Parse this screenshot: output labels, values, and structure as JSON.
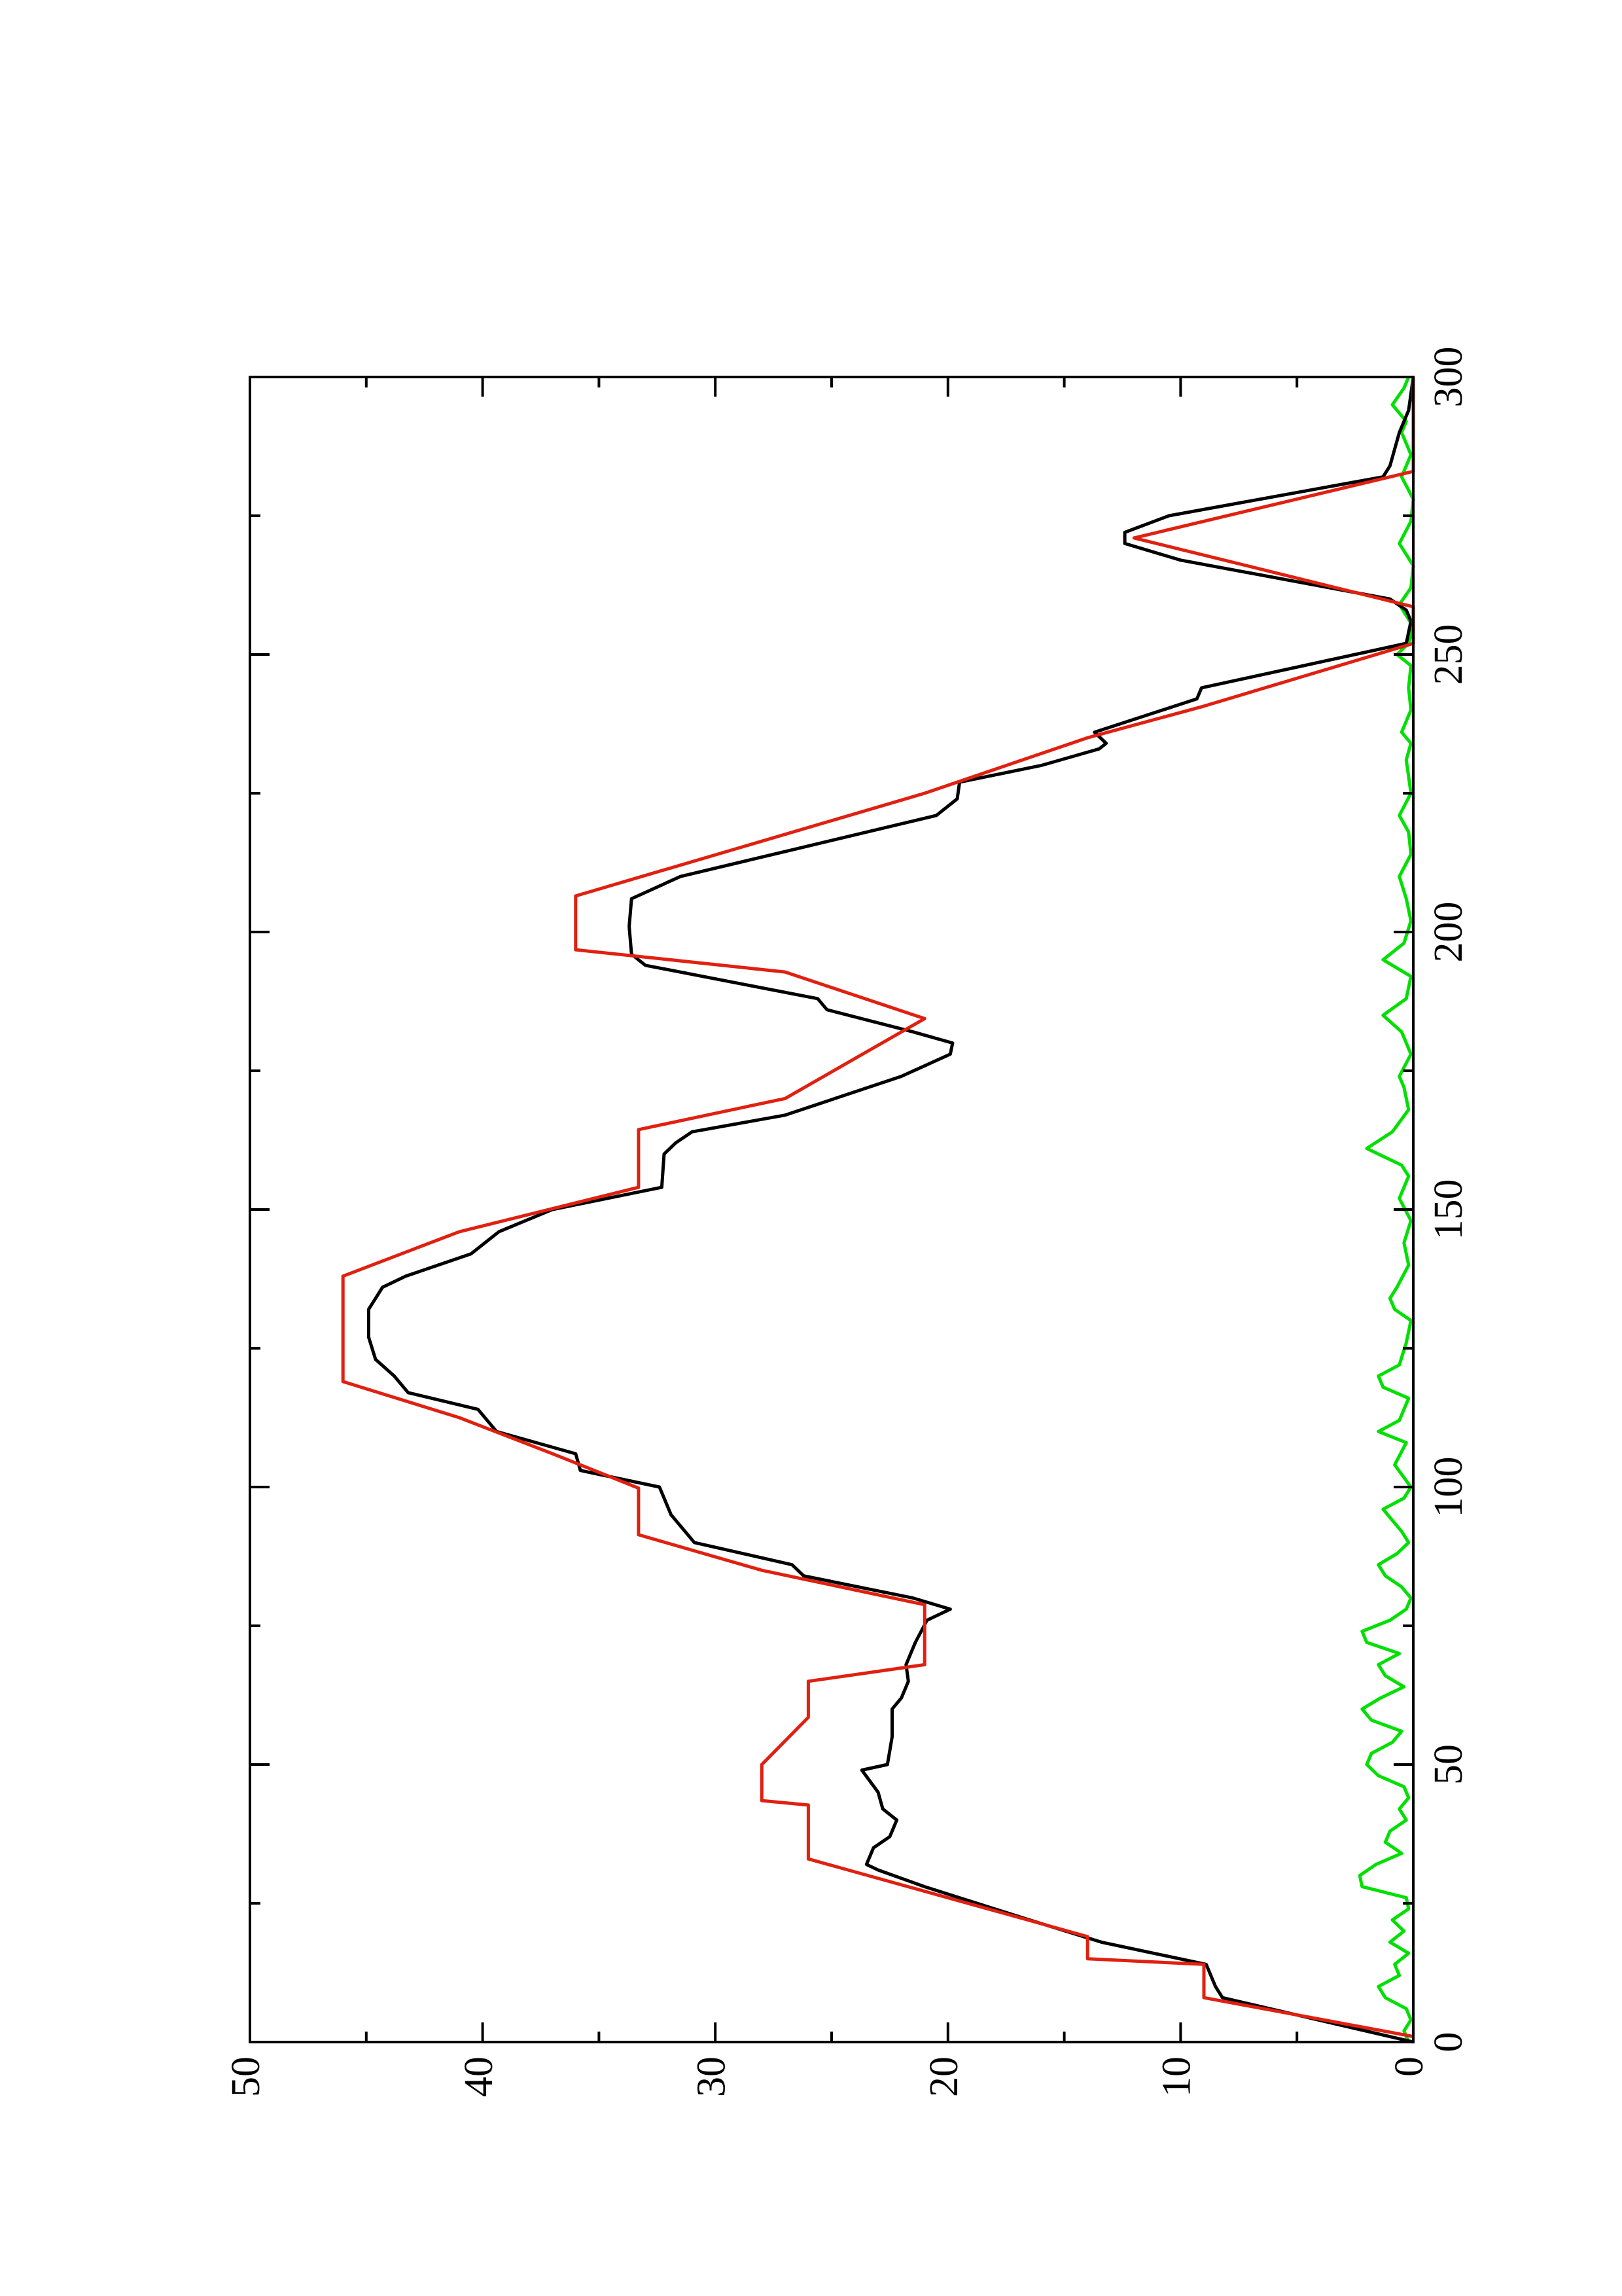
{
  "chart_data": {
    "type": "line",
    "xlim": [
      0,
      300
    ],
    "ylim": [
      0,
      50
    ],
    "xticks": [
      0,
      50,
      100,
      150,
      200,
      250,
      300
    ],
    "yticks": [
      0,
      10,
      20,
      30,
      40,
      50
    ],
    "xminor_ticks": [
      25,
      75,
      125,
      175,
      225,
      275
    ],
    "yminor_ticks": [
      5,
      15,
      25,
      35,
      45
    ],
    "rotation": -90,
    "series": [
      {
        "color": "#00e000",
        "x": [
          0,
          2,
          4,
          6,
          8,
          10,
          12,
          14,
          16,
          18,
          20,
          22,
          24,
          26,
          28,
          30,
          32,
          34,
          36,
          38,
          40,
          42,
          44,
          46,
          48,
          50,
          52,
          54,
          56,
          58,
          60,
          62,
          64,
          66,
          68,
          70,
          72,
          74,
          76,
          78,
          80,
          82,
          84,
          86,
          88,
          90,
          92,
          94,
          96,
          98,
          100,
          104,
          108,
          110,
          112,
          116,
          118,
          120,
          122,
          126,
          130,
          132,
          134,
          136,
          140,
          144,
          148,
          152,
          156,
          158,
          161,
          164,
          168,
          172,
          174,
          178,
          182,
          185,
          188,
          192,
          195,
          198,
          202,
          206,
          210,
          214,
          218,
          221,
          225,
          228,
          231,
          234,
          236,
          240,
          244,
          248,
          250,
          252,
          255,
          259,
          262,
          266,
          270,
          274,
          278,
          282,
          286,
          290,
          292,
          295,
          298,
          300
        ],
        "values": [
          0.2,
          0.4,
          0.1,
          0.3,
          1.2,
          1.5,
          0.6,
          0.8,
          0.2,
          1.0,
          0.4,
          0.9,
          0.2,
          0.3,
          2.2,
          2.3,
          1.6,
          0.5,
          1.2,
          1.0,
          0.3,
          0.6,
          0.2,
          0.4,
          1.5,
          2.0,
          1.8,
          0.9,
          0.5,
          1.8,
          2.2,
          1.4,
          0.4,
          1.2,
          1.5,
          0.6,
          2.0,
          2.2,
          1.0,
          0.3,
          0.1,
          0.5,
          1.2,
          1.5,
          0.7,
          0.2,
          0.5,
          0.9,
          1.3,
          0.4,
          0.1,
          0.8,
          0.3,
          1.5,
          0.6,
          0.2,
          1.3,
          1.5,
          0.6,
          0.3,
          0.1,
          0.8,
          1.0,
          0.7,
          0.2,
          0.4,
          0.1,
          0.6,
          0.2,
          0.5,
          2.0,
          0.9,
          0.2,
          0.4,
          0.6,
          0.1,
          0.5,
          1.3,
          0.3,
          0.1,
          1.3,
          0.4,
          0.1,
          0.3,
          0.6,
          0.1,
          0.2,
          0.6,
          0.1,
          0.2,
          0.3,
          0.1,
          0.5,
          0.1,
          0.2,
          0.1,
          0.7,
          0.2,
          0.0,
          0.6,
          0.1,
          0.0,
          0.6,
          0.1,
          0.0,
          0.5,
          0.1,
          0.5,
          0.3,
          0.9,
          0.4,
          0.2
        ]
      },
      {
        "color": "#000000",
        "x": [
          0,
          8,
          10,
          14,
          18,
          22,
          28,
          31,
          32,
          35,
          37,
          40,
          42,
          45,
          49,
          50,
          55,
          60,
          62,
          65,
          68,
          72,
          76,
          78,
          80,
          84,
          86,
          90,
          93,
          95,
          100,
          103,
          106,
          110,
          114,
          117,
          120,
          123,
          127,
          132,
          136,
          138,
          142,
          146,
          150,
          154,
          160,
          162,
          164,
          167,
          174,
          178,
          180,
          182,
          186,
          188,
          194,
          196,
          201,
          206,
          210,
          215,
          221,
          224,
          227,
          230,
          233,
          234,
          236,
          242,
          244,
          252,
          256,
          258,
          260,
          267,
          270,
          272,
          275,
          282,
          284,
          290,
          294,
          300
        ],
        "values": [
          0,
          8.2,
          8.5,
          8.9,
          13.4,
          16.5,
          21,
          23,
          23.5,
          23.2,
          22.5,
          22.2,
          22.8,
          23,
          23.7,
          22.6,
          22.4,
          22.4,
          22,
          21.7,
          21.8,
          21.4,
          20.9,
          19.9,
          21.5,
          26.2,
          26.7,
          30.9,
          31.5,
          31.9,
          32.4,
          35.8,
          36,
          39.4,
          40.2,
          43.2,
          43.8,
          44.6,
          44.9,
          44.9,
          44.3,
          43.3,
          40.5,
          39.3,
          37,
          32.3,
          32.2,
          31.7,
          31,
          27,
          22,
          19.9,
          19.8,
          21.5,
          25.2,
          25.6,
          33,
          33.6,
          33.7,
          33.6,
          31.5,
          26.5,
          20.5,
          19.6,
          19.5,
          16,
          13.5,
          13.2,
          13.7,
          9.3,
          9.1,
          0.3,
          0.1,
          0.3,
          1,
          10,
          12.4,
          12.4,
          10.5,
          1.3,
          1,
          0.6,
          0.2,
          0
        ]
      },
      {
        "color": "#e02010",
        "x": [
          1,
          8,
          14,
          15,
          19,
          33,
          42.7,
          43.5,
          50,
          58.5,
          65,
          68,
          78.8,
          85,
          91.4,
          99.8,
          106,
          112.5,
          119,
          138,
          146,
          154,
          164.4,
          170,
          184.4,
          192.8,
          196.8,
          206.5,
          225,
          235,
          240.7,
          252,
          258.6,
          271,
          283,
          300
        ],
        "values": [
          0,
          9,
          9,
          14,
          14,
          26,
          26,
          28,
          28,
          26,
          26,
          21,
          21,
          28,
          33.3,
          33.3,
          37,
          41,
          46,
          46,
          41,
          33.3,
          33.3,
          27,
          21,
          27,
          36,
          36,
          21,
          14,
          9,
          0,
          0,
          12,
          0,
          0
        ]
      }
    ]
  }
}
